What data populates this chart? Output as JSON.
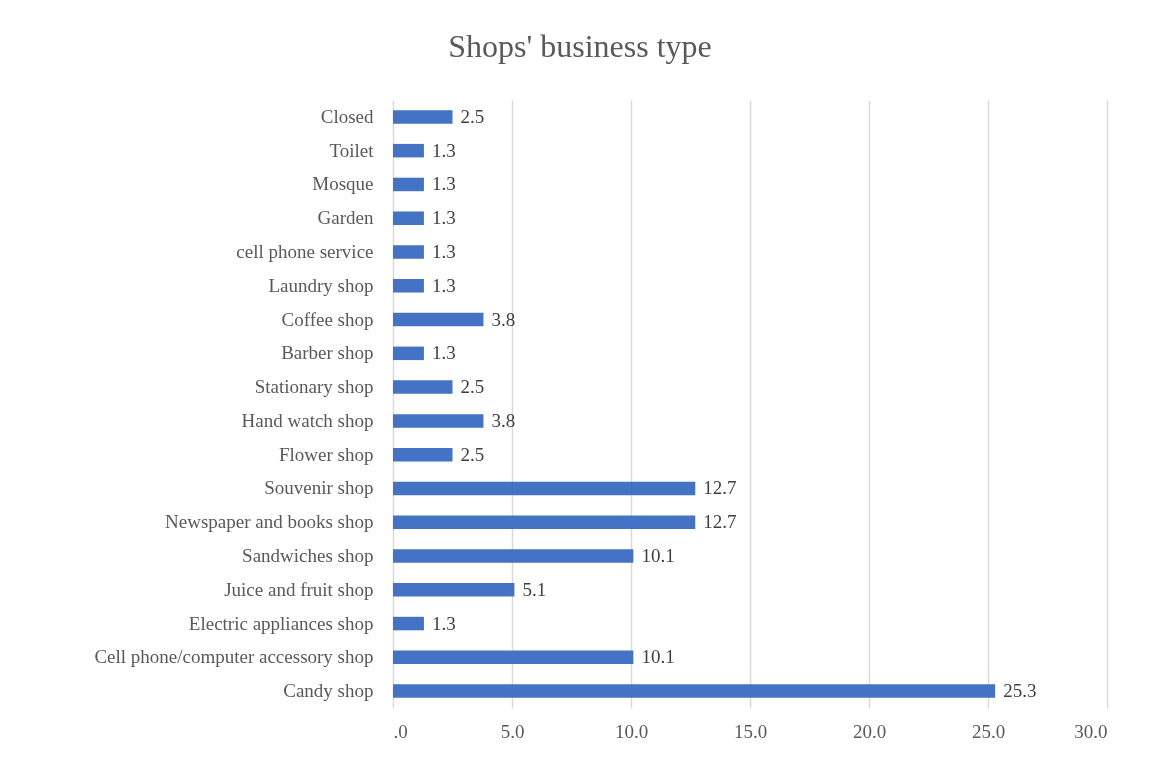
{
  "chart_data": {
    "type": "bar",
    "orientation": "horizontal",
    "title": "Shops' business type",
    "categories": [
      "Closed",
      "Toilet",
      "Mosque",
      "Garden",
      "cell phone service",
      "Laundry shop",
      "Coffee shop",
      "Barber shop",
      "Stationary shop",
      "Hand watch shop",
      "Flower shop",
      "Souvenir shop",
      "Newspaper and books shop",
      "Sandwiches shop",
      "Juice and fruit shop",
      "Electric appliances shop",
      "Cell phone/computer accessory shop",
      "Candy shop"
    ],
    "values": [
      2.5,
      1.3,
      1.3,
      1.3,
      1.3,
      1.3,
      3.8,
      1.3,
      2.5,
      3.8,
      2.5,
      12.7,
      12.7,
      10.1,
      5.1,
      1.3,
      10.1,
      25.3
    ],
    "color": "#4472c4",
    "xlim": [
      0,
      30
    ],
    "xticks": [
      {
        "value": 0,
        "label": ".0"
      },
      {
        "value": 5,
        "label": "5.0"
      },
      {
        "value": 10,
        "label": "10.0"
      },
      {
        "value": 15,
        "label": "15.0"
      },
      {
        "value": 20,
        "label": "20.0"
      },
      {
        "value": 25,
        "label": "25.0"
      },
      {
        "value": 30,
        "label": "30.0"
      }
    ],
    "grid": "x",
    "data_labels": true
  }
}
